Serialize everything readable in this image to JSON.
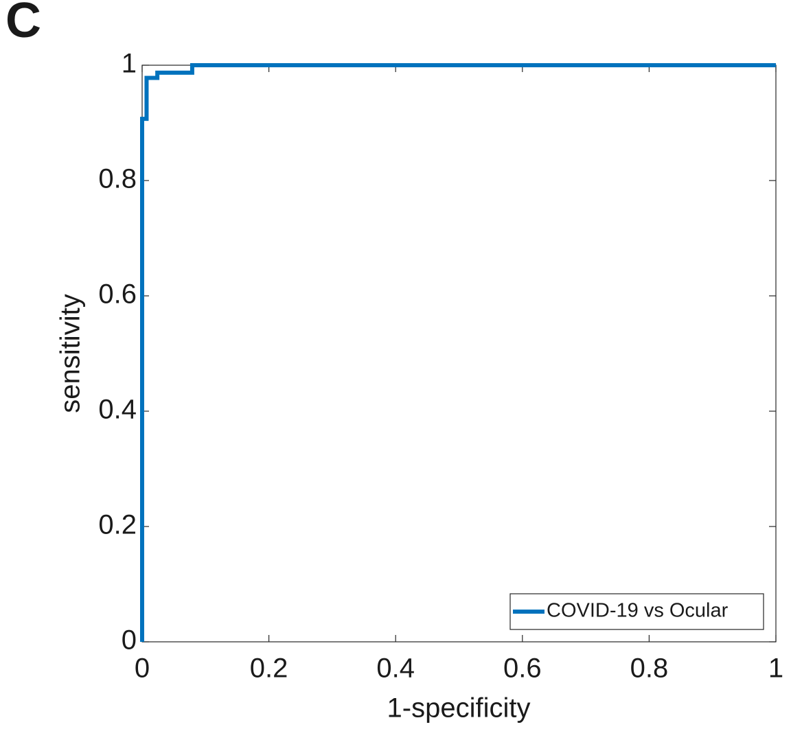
{
  "chart_data": {
    "type": "line",
    "panel_label": "C",
    "xlabel": "1-specificity",
    "ylabel": "sensitivity",
    "x": [
      0,
      0,
      0.007,
      0.007,
      0.024,
      0.024,
      0.079,
      0.079,
      1
    ],
    "series": [
      {
        "name": "COVID-19 vs Ocular",
        "color": "#0072bd",
        "values": [
          0,
          0.907,
          0.907,
          0.978,
          0.978,
          0.987,
          0.987,
          1,
          1
        ]
      }
    ],
    "xlim": [
      0,
      1
    ],
    "ylim": [
      0,
      1
    ],
    "xticks": [
      0,
      0.2,
      0.4,
      0.6,
      0.8,
      1
    ],
    "yticks": [
      0,
      0.2,
      0.4,
      0.6,
      0.8,
      1
    ],
    "legend": "lower right",
    "grid": false
  }
}
